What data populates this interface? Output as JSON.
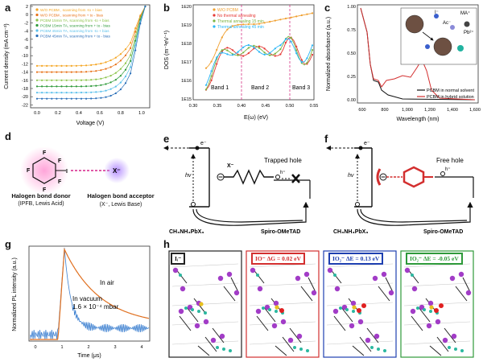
{
  "panel_labels": {
    "a": "a",
    "b": "b",
    "c": "c",
    "d": "d",
    "e": "e",
    "f": "f",
    "g": "g",
    "h": "h"
  },
  "panel_a": {
    "ylabel": "Current density (mA cm⁻²)",
    "xlabel": "Voltage (V)",
    "legend": [
      "W/O PCBM , scanning from -to + bias",
      "W/O PCBM , scanning from + to - bias",
      "PCBM 15min TA, scanning from -to + bias",
      "PCBM 15min TA, scanning from + to - bias",
      "PCBM 45min TA, scanning from -to + bias",
      "PCBM 45min TA, scanning from + to - bias"
    ],
    "yticks": [
      "2",
      "0",
      "-2",
      "-4",
      "-6",
      "-8",
      "-10",
      "-12",
      "-14",
      "-16",
      "-18",
      "-20",
      "-22"
    ],
    "xticks": [
      "0.0",
      "0.2",
      "0.4",
      "0.6",
      "0.8",
      "1.0"
    ],
    "colors": [
      "#f5a623",
      "#e8731a",
      "#8bc34a",
      "#2e9a3a",
      "#5bc0eb",
      "#2a6fb8"
    ]
  },
  "panel_b": {
    "ylabel": "DOS (m⁻³eV⁻¹)",
    "xlabel": "E(ω) (eV)",
    "legend": [
      "W/O PCBM",
      "No thermal annealing",
      "Thermal annealing 15 min",
      "Thermal annealing 45 min"
    ],
    "yticks": [
      "1E20",
      "1E19",
      "1E18",
      "1E17",
      "1E16",
      "1E15"
    ],
    "xticks": [
      "0.30",
      "0.35",
      "0.40",
      "0.45",
      "0.50",
      "0.55"
    ],
    "band_labels": [
      "Band 1",
      "Band 2",
      "Band 3"
    ],
    "colors": [
      "#f0a030",
      "#e53935",
      "#7cb342",
      "#29b6f6"
    ]
  },
  "panel_c": {
    "ylabel": "Normalized absorbance (a.u.)",
    "xlabel": "Wavelength (nm)",
    "legend": [
      "PCBM in normal solvent",
      "PCBM in hybrid solution"
    ],
    "yticks": [
      "1.00",
      "0.75",
      "0.50",
      "0.25",
      "0.00"
    ],
    "xticks": [
      "600",
      "800",
      "1,000",
      "1,200",
      "1,400",
      "1,600"
    ],
    "inset_labels": [
      "I⁻",
      "MA⁺",
      "Ac⁻",
      "Pb²⁺"
    ],
    "colors": [
      "#111111",
      "#d32f2f"
    ]
  },
  "panel_d": {
    "donor_title": "Halogen bond donor",
    "donor_sub": "(IPFB, Lewis Acid)",
    "acceptor_title": "Halogen bond acceptor",
    "acceptor_sub": "(X⁻, Lewis Base)",
    "atoms": [
      "F",
      "F",
      "F",
      "F",
      "F",
      "I",
      "X⁻"
    ]
  },
  "panel_e": {
    "hv": "hv",
    "electron": "e⁻",
    "hole": "h⁺",
    "anion": "X⁻",
    "trapped": "Trapped hole",
    "left_label": "CH₃NH₃PbX₃",
    "right_label": "Spiro-OMeTAD"
  },
  "panel_f": {
    "hv": "hv",
    "electron": "e⁻",
    "hole": "h⁺",
    "free": "Free hole",
    "left_label": "CH₃NH₃PbX₃",
    "right_label": "Spiro-OMeTAD"
  },
  "panel_g": {
    "ylabel": "Normalized PL intensity (a.u.)",
    "xlabel": "Time (μs)",
    "in_air": "In air",
    "in_vacuum": "In vacuum",
    "pressure": "1.6 × 10⁻⁴ mbar",
    "xticks": [
      "0",
      "1",
      "2",
      "3",
      "4"
    ],
    "colors": [
      "#e07020",
      "#3b7fd0"
    ]
  },
  "panel_h": {
    "boxes": [
      {
        "text": "Iᵢ⁻",
        "color": "#222222"
      },
      {
        "text": "IO⁻  ΔG = 0.02 eV",
        "color": "#d32f2f"
      },
      {
        "text": "IO₂⁻  ΔE = 0.13 eV",
        "color": "#1e3fb0"
      },
      {
        "text": "IO₂⁻  ΔE = -0.05 eV",
        "color": "#2e9a3a"
      }
    ]
  }
}
